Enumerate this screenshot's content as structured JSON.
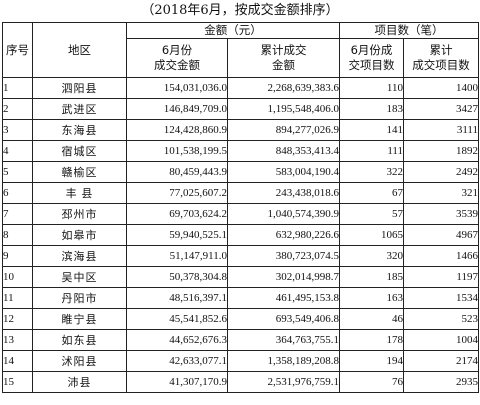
{
  "caption": "（2018年6月，按成交金额排序）",
  "header": {
    "seq": "序号",
    "region": "地区",
    "amount_group": "金额（元）",
    "count_group": "项目数（笔）",
    "june_amount_l1": "6月份",
    "june_amount_l2": "成交金额",
    "cum_amount_l1": "累计成交",
    "cum_amount_l2": "金额",
    "june_count_l1": "6月份成",
    "june_count_l2": "交项目数",
    "cum_count_l1": "累计",
    "cum_count_l2": "成交项目数"
  },
  "rows": [
    {
      "idx": "1",
      "region": "泗阳县",
      "june_amount": "154,031,036.0",
      "cum_amount": "2,268,639,383.6",
      "june_count": "110",
      "cum_count": "1400"
    },
    {
      "idx": "2",
      "region": "武进区",
      "june_amount": "146,849,709.0",
      "cum_amount": "1,195,548,406.0",
      "june_count": "183",
      "cum_count": "3427"
    },
    {
      "idx": "3",
      "region": "东海县",
      "june_amount": "124,428,860.9",
      "cum_amount": "894,277,026.9",
      "june_count": "141",
      "cum_count": "3111"
    },
    {
      "idx": "4",
      "region": "宿城区",
      "june_amount": "101,538,199.5",
      "cum_amount": "848,353,413.4",
      "june_count": "111",
      "cum_count": "1892"
    },
    {
      "idx": "5",
      "region": "赣榆区",
      "june_amount": "80,459,443.9",
      "cum_amount": "583,004,190.4",
      "june_count": "322",
      "cum_count": "2492"
    },
    {
      "idx": "6",
      "region": "丰 县",
      "june_amount": "77,025,607.2",
      "cum_amount": "243,438,018.6",
      "june_count": "67",
      "cum_count": "321"
    },
    {
      "idx": "7",
      "region": "邳州市",
      "june_amount": "69,703,624.2",
      "cum_amount": "1,040,574,390.9",
      "june_count": "57",
      "cum_count": "3539"
    },
    {
      "idx": "8",
      "region": "如皋市",
      "june_amount": "59,940,525.1",
      "cum_amount": "632,980,226.6",
      "june_count": "1065",
      "cum_count": "4967"
    },
    {
      "idx": "9",
      "region": "滨海县",
      "june_amount": "51,147,911.0",
      "cum_amount": "380,723,074.5",
      "june_count": "320",
      "cum_count": "1466"
    },
    {
      "idx": "10",
      "region": "吴中区",
      "june_amount": "50,378,304.8",
      "cum_amount": "302,014,998.7",
      "june_count": "185",
      "cum_count": "1197"
    },
    {
      "idx": "11",
      "region": "丹阳市",
      "june_amount": "48,516,397.1",
      "cum_amount": "461,495,153.8",
      "june_count": "163",
      "cum_count": "1534"
    },
    {
      "idx": "12",
      "region": "睢宁县",
      "june_amount": "45,541,852.6",
      "cum_amount": "693,549,406.8",
      "june_count": "46",
      "cum_count": "523"
    },
    {
      "idx": "13",
      "region": "如东县",
      "june_amount": "44,652,676.3",
      "cum_amount": "364,763,755.1",
      "june_count": "178",
      "cum_count": "1004"
    },
    {
      "idx": "14",
      "region": "沭阳县",
      "june_amount": "42,633,077.1",
      "cum_amount": "1,358,189,208.8",
      "june_count": "194",
      "cum_count": "2174"
    },
    {
      "idx": "15",
      "region": "沛县",
      "june_amount": "41,307,170.9",
      "cum_amount": "2,531,976,759.1",
      "june_count": "76",
      "cum_count": "2935"
    }
  ]
}
